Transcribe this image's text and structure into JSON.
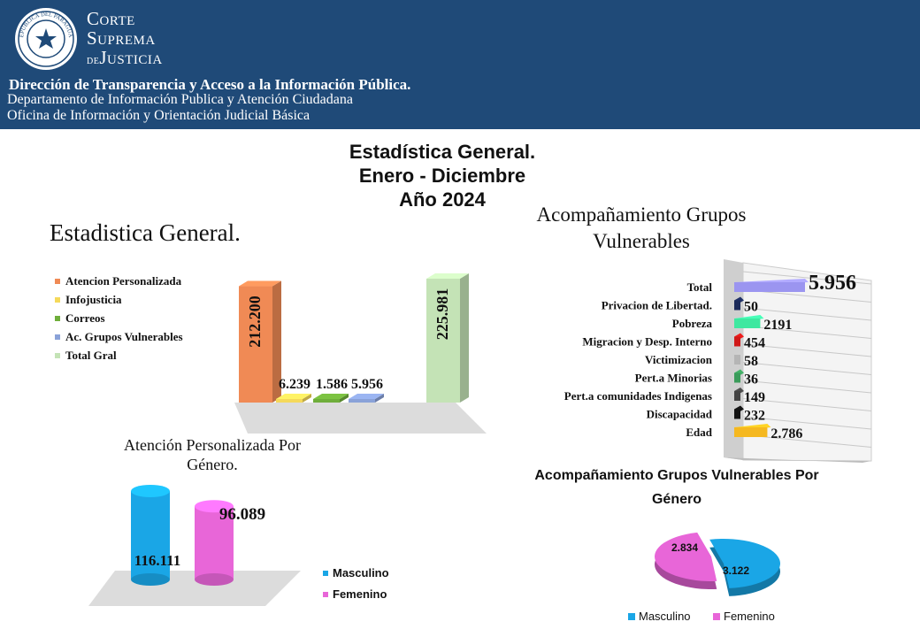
{
  "header": {
    "org_line1": "Corte",
    "org_line2": "Suprema",
    "org_line3_prefix": "de",
    "org_line3": "Justicia",
    "seal_text": "REPÚBLICA DEL PARAGUAY",
    "line1": "Dirección de Transparencia  y Acceso a la Información  Pública.",
    "line2": "Departamento de Información Publica y Atención Ciudadana",
    "line3": "Oficina de Información y Orientación Judicial Básica",
    "color": "#1f4a78"
  },
  "main_title": {
    "line1": "Estadística General.",
    "line2": "Enero - Diciembre",
    "line3": "Año 2024"
  },
  "chart_data": [
    {
      "type": "bar",
      "title": "Estadistica General.",
      "categories": [
        "Atencion Personalizada",
        "Infojusticia",
        "Correos",
        "Ac. Grupos Vulnerables",
        "Total Gral"
      ],
      "values": [
        212200,
        6239,
        1586,
        5956,
        225981
      ],
      "labels": [
        "212.200",
        "6.239",
        "1.586",
        "5.956",
        "225.981"
      ],
      "colors": [
        "#f08a55",
        "#f5d95a",
        "#6fae3b",
        "#8aa2d8",
        "#c4e3b6"
      ],
      "legend": "left",
      "grid": false
    },
    {
      "type": "bar",
      "orientation": "horizontal",
      "title": "Acompañamiento Grupos Vulnerables",
      "categories": [
        "Total",
        "Privacion de Libertad.",
        "Pobreza",
        "Migracion y Desp. Interno",
        "Victimizacion",
        "Pert.a Minorias",
        "Pert.a comunidades Indigenas",
        "Discapacidad",
        "Edad"
      ],
      "values": [
        5956,
        50,
        2191,
        454,
        58,
        36,
        149,
        232,
        2786
      ],
      "labels": [
        "5.956",
        "50",
        "2191",
        "454",
        "58",
        "36",
        "149",
        "232",
        "2.786"
      ],
      "colors": [
        "#9b95f0",
        "#1b2a5a",
        "#3ee8a0",
        "#d01818",
        "#b5b5b5",
        "#3a9b5a",
        "#444444",
        "#111111",
        "#f5b820"
      ],
      "grid": true
    },
    {
      "type": "bar",
      "title": "Atención Personalizada Por Género.",
      "categories": [
        "Masculino",
        "Femenino"
      ],
      "values": [
        116111,
        96089
      ],
      "labels": [
        "116.111",
        "96.089"
      ],
      "colors": [
        "#1aa6e6",
        "#e866d8"
      ],
      "legend": "right"
    },
    {
      "type": "pie",
      "title": "Acompañamiento  Grupos Vulnerables Por Género",
      "categories": [
        "Masculino",
        "Femenino"
      ],
      "values": [
        3122,
        2834
      ],
      "labels": [
        "3.122",
        "2.834"
      ],
      "colors": [
        "#1aa6e6",
        "#e866d8"
      ],
      "legend": "bottom"
    }
  ]
}
